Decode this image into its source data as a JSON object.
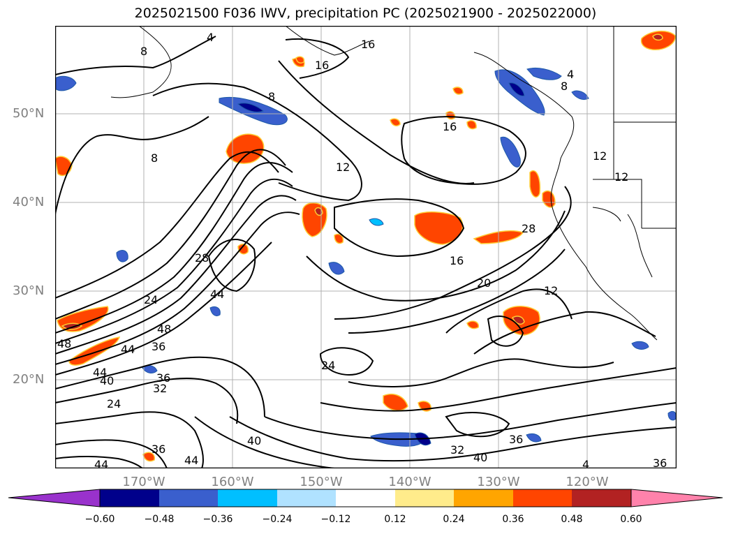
{
  "title": "2025021500 F036 IWV, precipitation PC (2025021900 - 2025022000)",
  "latitude_labels": [
    "50°N",
    "40°N",
    "30°N",
    "20°N"
  ],
  "longitude_labels": [
    "170°W",
    "160°W",
    "150°W",
    "140°W",
    "130°W",
    "120°W"
  ],
  "colorbar": {
    "ticks": [
      "−0.60",
      "−0.48",
      "−0.36",
      "−0.24",
      "−0.12",
      "0.12",
      "0.24",
      "0.36",
      "0.48",
      "0.60"
    ],
    "colors": [
      "#9932cc",
      "#00008b",
      "#3a5fcd",
      "#00bfff",
      "#b0e2ff",
      "#ffffff",
      "#ffec8b",
      "#ffa500",
      "#ff4500",
      "#b22222",
      "#ff82ab"
    ]
  },
  "contour_labels": [
    "4",
    "8",
    "16",
    "16",
    "16",
    "8",
    "8",
    "12",
    "4",
    "8",
    "12",
    "12",
    "28",
    "28",
    "24",
    "44",
    "48",
    "48",
    "44",
    "36",
    "44",
    "40",
    "32",
    "24",
    "24",
    "16",
    "20",
    "12",
    "40",
    "36",
    "32",
    "40",
    "36",
    "36",
    "44",
    "44",
    "4",
    "36"
  ]
}
